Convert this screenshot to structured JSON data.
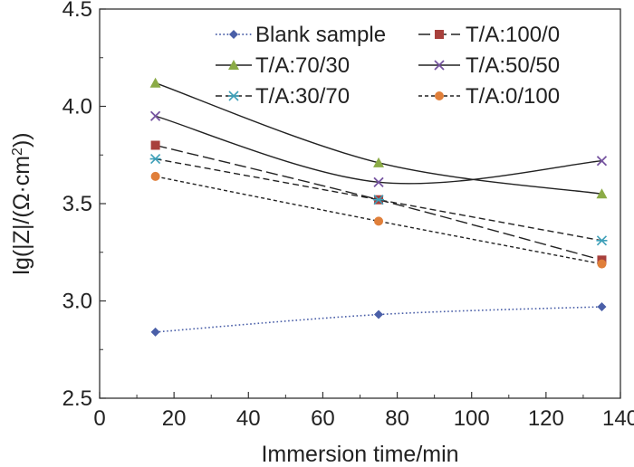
{
  "chart_data": {
    "type": "line",
    "title": "",
    "xlabel": "Immersion time/min",
    "ylabel": "lg(|Z|/(Ω·cm²))",
    "ylabel_parts": {
      "pre": "lg(|Z|/(Ω·cm",
      "sup": "2",
      "post": "))"
    },
    "xlim": [
      0,
      140
    ],
    "ylim": [
      2.5,
      4.5
    ],
    "xticks": [
      0,
      20,
      40,
      60,
      80,
      100,
      120,
      140
    ],
    "xtick_labels": [
      "0",
      "20",
      "40",
      "60",
      "80",
      "100",
      "120",
      "140"
    ],
    "yticks": [
      2.5,
      3.0,
      3.5,
      4.0,
      4.5
    ],
    "ytick_labels": [
      "2.5",
      "3.0",
      "3.5",
      "4.0",
      "4.5"
    ],
    "grid": false,
    "legend_position": "top-right",
    "x": [
      15,
      75,
      135
    ],
    "series": [
      {
        "name": "Blank sample",
        "values": [
          2.84,
          2.93,
          2.97
        ],
        "color": "#4a5fa8",
        "marker": "diamond",
        "line": "dotted"
      },
      {
        "name": "T/A:100/0",
        "values": [
          3.8,
          3.52,
          3.21
        ],
        "color": "#a8403c",
        "marker": "square",
        "line": "longdash"
      },
      {
        "name": "T/A:70/30",
        "values": [
          4.12,
          3.71,
          3.55
        ],
        "color": "#8bab46",
        "marker": "triangle",
        "line": "solid"
      },
      {
        "name": "T/A:50/50",
        "values": [
          3.95,
          3.61,
          3.72
        ],
        "color": "#7654a0",
        "marker": "cross",
        "line": "solid"
      },
      {
        "name": "T/A:30/70",
        "values": [
          3.73,
          3.52,
          3.31
        ],
        "color": "#3d9fb8",
        "marker": "star",
        "line": "dash"
      },
      {
        "name": "T/A:0/100",
        "values": [
          3.64,
          3.41,
          3.19
        ],
        "color": "#e07f3a",
        "marker": "circle",
        "line": "shortdash"
      }
    ]
  }
}
